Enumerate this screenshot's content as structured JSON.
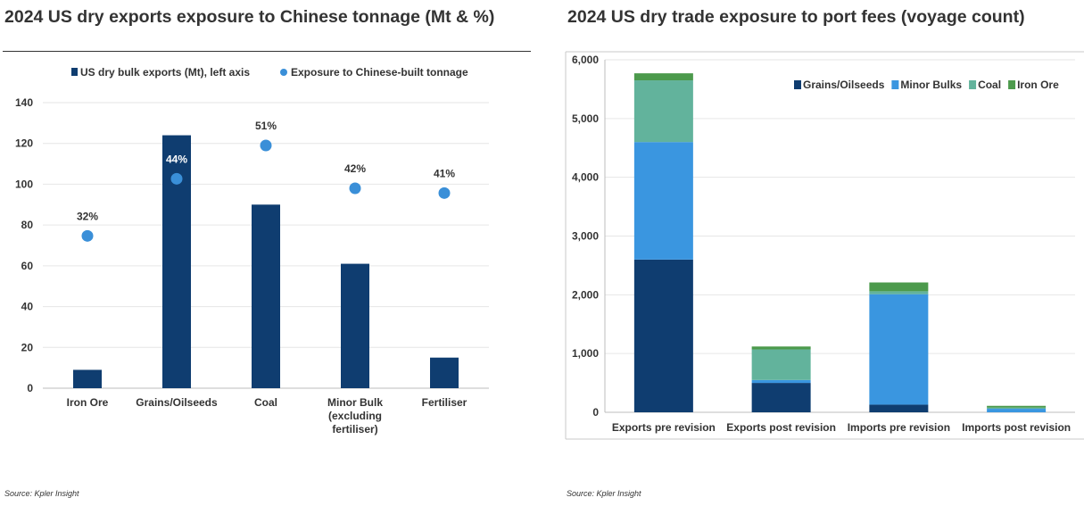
{
  "charts": [
    {
      "title": "2024 US dry exports exposure to Chinese tonnage (Mt & %)",
      "source": "Source: Kpler Insight"
    },
    {
      "title": "2024 US dry trade exposure to port fees (voyage count)",
      "source": "Source: Kpler Insight"
    }
  ],
  "chart_data": [
    {
      "type": "bar",
      "title": "2024 US dry exports exposure to Chinese tonnage (Mt & %)",
      "categories": [
        [
          "Iron Ore"
        ],
        [
          "Grains/Oilseeds"
        ],
        [
          "Coal"
        ],
        [
          "Minor Bulk",
          "(excluding",
          "fertiliser)"
        ],
        [
          "Fertiliser"
        ]
      ],
      "series": [
        {
          "name": "US dry bulk exports (Mt), left axis",
          "kind": "bar",
          "color": "#0f3d70",
          "values": [
            9,
            124,
            90,
            61,
            15
          ]
        },
        {
          "name": "Exposure to Chinese-built tonnage",
          "kind": "scatter",
          "color": "#3a8fd8",
          "values": [
            32,
            44,
            51,
            42,
            41
          ],
          "labels": [
            "32%",
            "44%",
            "51%",
            "42%",
            "41%"
          ]
        }
      ],
      "ylim": [
        0,
        140
      ],
      "yticks": [
        0,
        20,
        40,
        60,
        80,
        100,
        120,
        140
      ],
      "y2lim": [
        0,
        60
      ],
      "grid": true,
      "legend_position": "top"
    },
    {
      "type": "bar",
      "stacked": true,
      "title": "2024 US dry trade exposure to port fees (voyage count)",
      "categories": [
        "Exports pre revision",
        "Exports post revision",
        "Imports pre revision",
        "Imports post revision"
      ],
      "series": [
        {
          "name": "Grains/Oilseeds",
          "color": "#0f3d70",
          "values": [
            2600,
            500,
            130,
            0
          ]
        },
        {
          "name": "Minor Bulks",
          "color": "#3a96e0",
          "values": [
            2000,
            50,
            1880,
            60
          ]
        },
        {
          "name": "Coal",
          "color": "#62b39c",
          "values": [
            1050,
            520,
            50,
            20
          ]
        },
        {
          "name": "Iron Ore",
          "color": "#4c9a4c",
          "values": [
            120,
            50,
            150,
            30
          ]
        }
      ],
      "ylim": [
        0,
        6000
      ],
      "yticks": [
        0,
        1000,
        2000,
        3000,
        4000,
        5000,
        6000
      ],
      "ytick_labels": [
        "0",
        "1,000",
        "2,000",
        "3,000",
        "4,000",
        "5,000",
        "6,000"
      ],
      "grid": true,
      "legend_position": "top-right"
    }
  ]
}
